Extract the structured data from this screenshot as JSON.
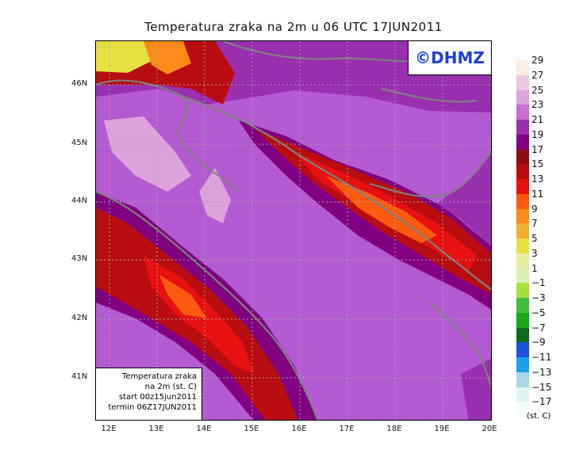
{
  "title": "Temperatura zraka na 2m u 06 UTC 17JUN2011",
  "logo": "©DHMZ",
  "infobox": [
    "Temperatura zraka",
    "na 2m (st. C)",
    "start 00z15jun2011",
    "termin 06Z17JUN2011"
  ],
  "lat_labels": [
    "46N",
    "45N",
    "44N",
    "43N",
    "42N",
    "41N"
  ],
  "lon_labels": [
    "12E",
    "13E",
    "14E",
    "15E",
    "16E",
    "17E",
    "18E",
    "19E",
    "20E"
  ],
  "colorbar": {
    "labels": [
      "29",
      "27",
      "25",
      "23",
      "21",
      "19",
      "17",
      "15",
      "13",
      "11",
      "9",
      "7",
      "5",
      "3",
      "1",
      "−1",
      "−3",
      "−5",
      "−7",
      "−9",
      "−11",
      "−13",
      "−15",
      "−17"
    ],
    "colors": [
      "#fbeee0",
      "#e8c8e2",
      "#dca3dc",
      "#c86fd0",
      "#9a2fb0",
      "#800080",
      "#8c0d14",
      "#b80c10",
      "#e81010",
      "#fb5a10",
      "#fa8a1a",
      "#f0b030",
      "#e8e040",
      "#e6eba0",
      "#d7f0b8",
      "#a8e040",
      "#40c040",
      "#18a818",
      "#106818",
      "#2050d8",
      "#1ca0e8",
      "#a8d8e8",
      "#e0f4f8",
      "#f4fcfc"
    ],
    "units": "(st. C)"
  },
  "legend": {
    "colors": {
      "sea": "#b45ad2",
      "coast_land": "#800080",
      "warm_interior": "#b80c10",
      "hot_core": "#e81010",
      "hottest": "#fb5a10",
      "alps": "#e8e040",
      "cool_pink": "#dca3dc",
      "boundary": "#808080"
    }
  }
}
